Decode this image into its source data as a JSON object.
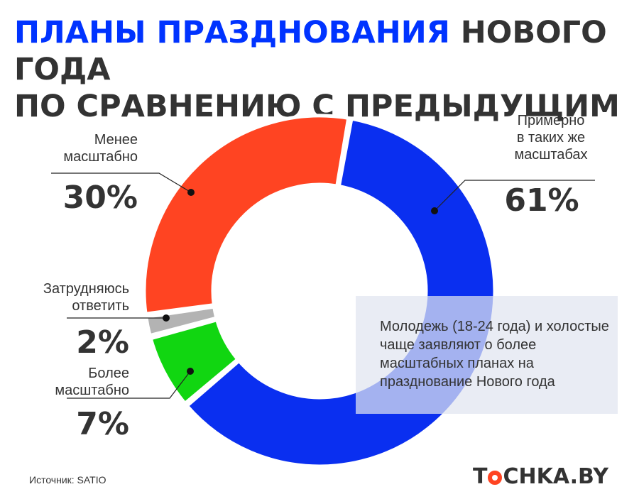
{
  "title": {
    "line1_accent": "ПЛАНЫ ПРАЗДНОВАНИЯ",
    "line1_rest": "НОВОГО ГОДА",
    "line2": "ПО СРАВНЕНИЮ С ПРЕДЫДУЩИМ"
  },
  "colors": {
    "title_accent": "#0033ff",
    "text": "#333333",
    "logo_accent": "#ff4422"
  },
  "chart_data": {
    "type": "pie",
    "title": "ПЛАНЫ ПРАЗДНОВАНИЯ НОВОГО ГОДА ПО СРАВНЕНИЮ С ПРЕДЫДУЩИМ",
    "unit": "%",
    "style": "donut",
    "slices": [
      {
        "label_lines": [
          "Примерно",
          "в таких же",
          "масштабах"
        ],
        "value": 61,
        "value_label": "61%",
        "color": "#0a2ff0"
      },
      {
        "label_lines": [
          "Более",
          "масштабно"
        ],
        "value": 7,
        "value_label": "7%",
        "color": "#11d611"
      },
      {
        "label_lines": [
          "Затрудняюсь",
          "ответить"
        ],
        "value": 2,
        "value_label": "2%",
        "color": "#b3b3b3"
      },
      {
        "label_lines": [
          "Менее",
          "масштабно"
        ],
        "value": 30,
        "value_label": "30%",
        "color": "#ff4422"
      }
    ]
  },
  "note": "Молодежь (18-24 года) и холостые чаще заявляют о более масштабных планах на празднование Нового года",
  "source": "Источник: SATIO",
  "logo": {
    "part1": "T",
    "part2": "CHKA.BY"
  }
}
